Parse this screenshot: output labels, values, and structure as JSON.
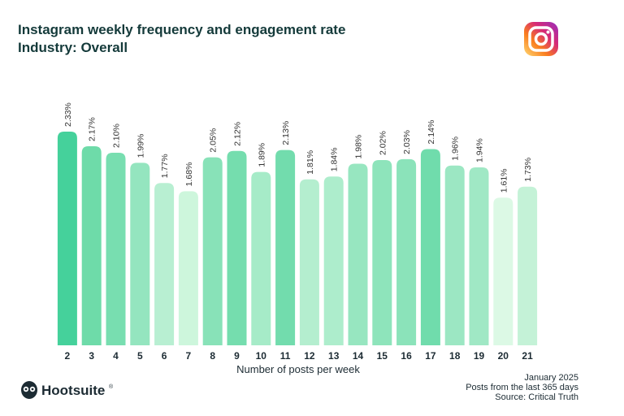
{
  "chart_data": {
    "type": "bar",
    "title": "Instagram weekly frequency and engagement rate",
    "subtitle": "Industry: Overall",
    "x_label": "Number of posts per week",
    "categories": [
      "2",
      "3",
      "4",
      "5",
      "6",
      "7",
      "8",
      "9",
      "10",
      "11",
      "12",
      "13",
      "14",
      "15",
      "16",
      "17",
      "18",
      "19",
      "20",
      "21"
    ],
    "values": [
      2.33,
      2.17,
      2.1,
      1.99,
      1.77,
      1.68,
      2.05,
      2.12,
      1.89,
      2.13,
      1.81,
      1.84,
      1.98,
      2.02,
      2.03,
      2.14,
      1.96,
      1.94,
      1.61,
      1.73
    ],
    "value_labels": [
      "2.33%",
      "2.17%",
      "2.10%",
      "1.99%",
      "1.77%",
      "1.68%",
      "2.05%",
      "2.12%",
      "1.89%",
      "2.13%",
      "1.81%",
      "1.84%",
      "1.98%",
      "2.02%",
      "2.03%",
      "2.14%",
      "1.96%",
      "1.94%",
      "1.61%",
      "1.73%"
    ],
    "colors": [
      "#45d19b",
      "#6edba9",
      "#78deb0",
      "#94e5bf",
      "#b8efd2",
      "#cdf6dc",
      "#88e2b8",
      "#75ddae",
      "#a6ebc8",
      "#72dcad",
      "#b4eecf",
      "#adedcc",
      "#97e6c0",
      "#8ee4bb",
      "#8be3ba",
      "#70dcac",
      "#9ce7c3",
      "#a0e8c5",
      "#dcf9e5",
      "#c4f2d7"
    ],
    "notes": [
      "January 2025",
      "Posts from the last 365 days",
      "Source: Critical Truth"
    ],
    "brand": "Hootsuite",
    "brand_mark": "®"
  }
}
